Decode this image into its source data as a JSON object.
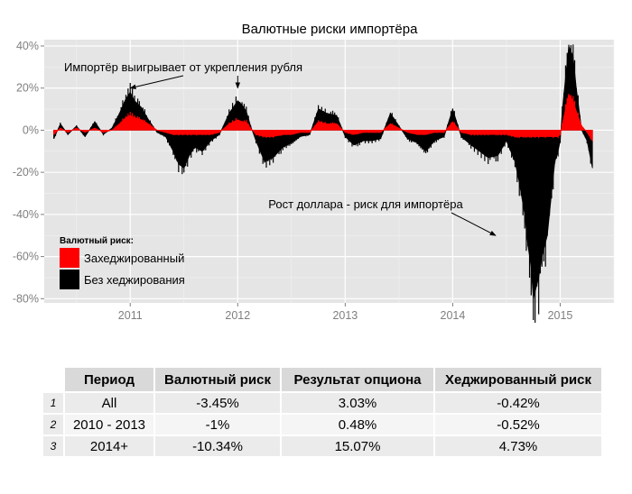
{
  "chart_data": {
    "type": "area",
    "title": "Валютные риски импортёра",
    "xlabel": "",
    "ylabel": "",
    "x_ticks": [
      "2011",
      "2012",
      "2013",
      "2014",
      "2015"
    ],
    "y_ticks": [
      "40%",
      "20%",
      "0%",
      "-20%",
      "-40%",
      "-60%",
      "-80%"
    ],
    "y_tick_values": [
      40,
      20,
      0,
      -20,
      -40,
      -60,
      -80
    ],
    "x_range": [
      2010.2,
      2015.5
    ],
    "ylim": [
      -82,
      43
    ],
    "grid": true,
    "legend": {
      "title": "Валютный риск:",
      "position": "bottom-left",
      "items": [
        {
          "label": "Захеджированный",
          "color": "#ff0000"
        },
        {
          "label": "Без хеджирования",
          "color": "#000000"
        }
      ]
    },
    "annotations": [
      {
        "text": "Импортёр выигрывает от укрепления рубля",
        "arrow_to": [
          [
            2011.0,
            20
          ],
          [
            2012.0,
            20
          ]
        ]
      },
      {
        "text": "Рост доллара - риск для импортёра",
        "arrow_to": [
          [
            2014.4,
            -50
          ]
        ]
      }
    ],
    "series": [
      {
        "name": "Без хеджирования",
        "color": "#000000",
        "x": [
          2010.29,
          2010.35,
          2010.42,
          2010.5,
          2010.58,
          2010.67,
          2010.75,
          2010.83,
          2010.9,
          2010.96,
          2011.0,
          2011.04,
          2011.1,
          2011.17,
          2011.25,
          2011.33,
          2011.4,
          2011.45,
          2011.5,
          2011.55,
          2011.6,
          2011.67,
          2011.75,
          2011.83,
          2011.92,
          2012.0,
          2012.04,
          2012.08,
          2012.12,
          2012.17,
          2012.25,
          2012.33,
          2012.42,
          2012.5,
          2012.58,
          2012.67,
          2012.75,
          2012.83,
          2012.92,
          2013.0,
          2013.08,
          2013.17,
          2013.25,
          2013.33,
          2013.42,
          2013.5,
          2013.58,
          2013.67,
          2013.75,
          2013.83,
          2013.92,
          2014.0,
          2014.08,
          2014.17,
          2014.25,
          2014.33,
          2014.42,
          2014.5,
          2014.58,
          2014.62,
          2014.67,
          2014.7,
          2014.73,
          2014.75,
          2014.8,
          2014.83,
          2014.88,
          2014.92,
          2014.95,
          2014.98,
          2015.0,
          2015.02,
          2015.05,
          2015.08,
          2015.12,
          2015.15,
          2015.2,
          2015.25,
          2015.3
        ],
        "values": [
          -4,
          3,
          -2,
          2,
          -3,
          4,
          -2,
          1,
          8,
          15,
          18,
          14,
          11,
          5,
          -1,
          -3,
          -10,
          -16,
          -18,
          -12,
          -8,
          -10,
          -5,
          -2,
          8,
          14,
          12,
          9,
          2,
          -5,
          -15,
          -13,
          -8,
          -6,
          -3,
          -2,
          10,
          8,
          7,
          -3,
          -7,
          -5,
          -5,
          -4,
          8,
          2,
          -4,
          -6,
          -10,
          -5,
          -3,
          10,
          -3,
          -7,
          -10,
          -13,
          -12,
          -5,
          -15,
          -25,
          -40,
          -55,
          -65,
          -80,
          -70,
          -60,
          -50,
          -30,
          -15,
          -10,
          -5,
          10,
          25,
          40,
          35,
          20,
          0,
          -5,
          -18
        ]
      },
      {
        "name": "Захеджированный",
        "color": "#ff0000",
        "x": [
          2010.29,
          2010.35,
          2010.42,
          2010.5,
          2010.58,
          2010.67,
          2010.75,
          2010.83,
          2010.9,
          2010.96,
          2011.0,
          2011.04,
          2011.1,
          2011.17,
          2011.25,
          2011.33,
          2011.4,
          2011.45,
          2011.5,
          2011.55,
          2011.6,
          2011.67,
          2011.75,
          2011.83,
          2011.92,
          2012.0,
          2012.04,
          2012.08,
          2012.12,
          2012.17,
          2012.25,
          2012.33,
          2012.42,
          2012.5,
          2012.58,
          2012.67,
          2012.75,
          2012.83,
          2012.92,
          2013.0,
          2013.08,
          2013.17,
          2013.25,
          2013.33,
          2013.42,
          2013.5,
          2013.58,
          2013.67,
          2013.75,
          2013.83,
          2013.92,
          2014.0,
          2014.08,
          2014.17,
          2014.25,
          2014.33,
          2014.42,
          2014.5,
          2014.58,
          2014.62,
          2014.67,
          2014.7,
          2014.73,
          2014.75,
          2014.8,
          2014.83,
          2014.88,
          2014.92,
          2014.95,
          2014.98,
          2015.0,
          2015.02,
          2015.05,
          2015.08,
          2015.12,
          2015.15,
          2015.2,
          2015.25,
          2015.3
        ],
        "values": [
          -2,
          1,
          -1,
          1,
          -1,
          1,
          -1,
          0,
          3,
          6,
          7,
          6,
          5,
          3,
          0,
          -1,
          -2,
          -2,
          -2,
          -2,
          -2,
          -2,
          -2,
          -1,
          3,
          5,
          4,
          4,
          1,
          -2,
          -3,
          -3,
          -2,
          -2,
          -1,
          -1,
          4,
          3,
          3,
          -1,
          -2,
          -1,
          -1,
          -1,
          3,
          1,
          -1,
          -2,
          -2,
          -1,
          -1,
          4,
          -1,
          -2,
          -2,
          -2,
          -2,
          -2,
          -3,
          -3,
          -3,
          -3,
          -3,
          -3,
          -3,
          -3,
          -3,
          -3,
          -3,
          -3,
          -2,
          3,
          10,
          17,
          14,
          9,
          2,
          -1,
          -5
        ]
      }
    ]
  },
  "table": {
    "headers": [
      "Период",
      "Валютный риск",
      "Результат опциона",
      "Хеджированный риск"
    ],
    "rows": [
      {
        "n": "1",
        "cells": [
          "All",
          "-3.45%",
          "3.03%",
          "-0.42%"
        ]
      },
      {
        "n": "2",
        "cells": [
          "2010 - 2013",
          "-1%",
          "0.48%",
          "-0.52%"
        ]
      },
      {
        "n": "3",
        "cells": [
          "2014+",
          "-10.34%",
          "15.07%",
          "4.73%"
        ]
      }
    ]
  }
}
